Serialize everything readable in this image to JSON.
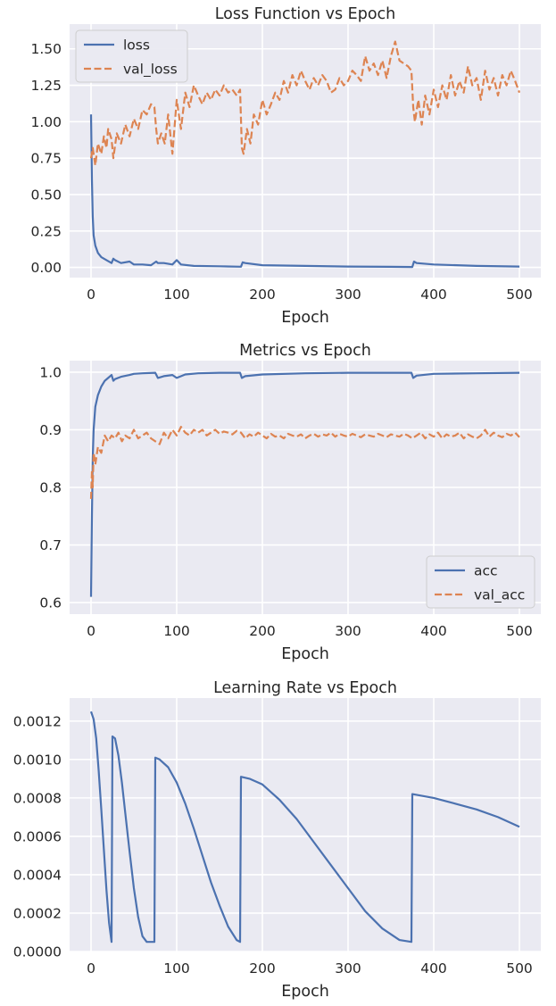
{
  "chart_data": [
    {
      "type": "line",
      "title": "Loss Function vs Epoch",
      "xlabel": "Epoch",
      "ylabel": "",
      "xlim": [
        -25,
        525
      ],
      "ylim": [
        -0.07,
        1.67
      ],
      "xticks": [
        0,
        100,
        200,
        300,
        400,
        500
      ],
      "xtick_labels": [
        "0",
        "100",
        "200",
        "300",
        "400",
        "500"
      ],
      "yticks": [
        0.0,
        0.25,
        0.5,
        0.75,
        1.0,
        1.25,
        1.5
      ],
      "ytick_labels": [
        "0.00",
        "0.25",
        "0.50",
        "0.75",
        "1.00",
        "1.25",
        "1.50"
      ],
      "legend": "top-left",
      "grid": true,
      "series": [
        {
          "name": "loss",
          "color": "#4c72b0",
          "dash": "solid",
          "x": [
            0,
            1,
            2,
            3,
            5,
            8,
            12,
            18,
            24,
            26,
            28,
            35,
            45,
            50,
            60,
            70,
            76,
            78,
            85,
            95,
            100,
            105,
            120,
            150,
            175,
            177,
            180,
            200,
            250,
            300,
            350,
            375,
            377,
            380,
            400,
            450,
            500
          ],
          "y": [
            1.05,
            0.6,
            0.35,
            0.22,
            0.15,
            0.1,
            0.07,
            0.05,
            0.03,
            0.06,
            0.05,
            0.03,
            0.04,
            0.02,
            0.02,
            0.015,
            0.04,
            0.03,
            0.03,
            0.02,
            0.05,
            0.02,
            0.01,
            0.008,
            0.005,
            0.035,
            0.03,
            0.015,
            0.01,
            0.006,
            0.004,
            0.003,
            0.04,
            0.03,
            0.02,
            0.01,
            0.006
          ]
        },
        {
          "name": "val_loss",
          "color": "#dd8452",
          "dash": "dashed",
          "x": [
            0,
            2,
            5,
            8,
            12,
            15,
            18,
            20,
            24,
            26,
            30,
            35,
            40,
            45,
            50,
            55,
            60,
            65,
            70,
            74,
            76,
            78,
            82,
            86,
            90,
            95,
            100,
            105,
            110,
            115,
            120,
            125,
            130,
            135,
            140,
            145,
            150,
            155,
            160,
            165,
            170,
            174,
            176,
            178,
            182,
            186,
            190,
            195,
            200,
            205,
            210,
            215,
            220,
            225,
            230,
            235,
            240,
            245,
            250,
            255,
            260,
            265,
            270,
            275,
            280,
            285,
            290,
            295,
            300,
            305,
            310,
            315,
            320,
            325,
            330,
            335,
            340,
            345,
            350,
            355,
            360,
            365,
            370,
            374,
            376,
            378,
            382,
            386,
            390,
            395,
            400,
            405,
            410,
            415,
            420,
            425,
            430,
            435,
            440,
            445,
            450,
            455,
            460,
            465,
            470,
            475,
            480,
            485,
            490,
            495,
            500
          ],
          "y": [
            0.75,
            0.82,
            0.7,
            0.85,
            0.78,
            0.9,
            0.82,
            0.95,
            0.88,
            0.75,
            0.92,
            0.85,
            0.98,
            0.9,
            1.02,
            0.95,
            1.08,
            1.05,
            1.12,
            1.1,
            0.95,
            0.85,
            0.92,
            0.85,
            1.05,
            0.78,
            1.15,
            0.95,
            1.2,
            1.1,
            1.25,
            1.18,
            1.12,
            1.2,
            1.15,
            1.22,
            1.18,
            1.25,
            1.2,
            1.22,
            1.18,
            1.22,
            0.82,
            0.78,
            0.95,
            0.85,
            1.05,
            0.98,
            1.15,
            1.05,
            1.12,
            1.2,
            1.15,
            1.28,
            1.2,
            1.32,
            1.25,
            1.35,
            1.28,
            1.22,
            1.3,
            1.25,
            1.32,
            1.28,
            1.2,
            1.22,
            1.3,
            1.25,
            1.28,
            1.35,
            1.32,
            1.28,
            1.45,
            1.35,
            1.4,
            1.32,
            1.42,
            1.3,
            1.45,
            1.55,
            1.42,
            1.4,
            1.38,
            1.35,
            1.1,
            1.0,
            1.15,
            0.98,
            1.18,
            1.05,
            1.22,
            1.1,
            1.25,
            1.15,
            1.32,
            1.18,
            1.28,
            1.2,
            1.38,
            1.25,
            1.3,
            1.15,
            1.35,
            1.22,
            1.3,
            1.18,
            1.32,
            1.25,
            1.35,
            1.28,
            1.2
          ]
        }
      ]
    },
    {
      "type": "line",
      "title": "Metrics vs Epoch",
      "xlabel": "Epoch",
      "ylabel": "",
      "xlim": [
        -25,
        525
      ],
      "ylim": [
        0.58,
        1.02
      ],
      "xticks": [
        0,
        100,
        200,
        300,
        400,
        500
      ],
      "xtick_labels": [
        "0",
        "100",
        "200",
        "300",
        "400",
        "500"
      ],
      "yticks": [
        0.6,
        0.7,
        0.8,
        0.9,
        1.0
      ],
      "ytick_labels": [
        "0.6",
        "0.7",
        "0.8",
        "0.9",
        "1.0"
      ],
      "legend": "bottom-right",
      "grid": true,
      "series": [
        {
          "name": "acc",
          "color": "#4c72b0",
          "dash": "solid",
          "x": [
            0,
            1,
            2,
            3,
            5,
            8,
            12,
            16,
            20,
            24,
            26,
            28,
            35,
            45,
            50,
            60,
            75,
            78,
            85,
            95,
            100,
            110,
            125,
            150,
            174,
            176,
            180,
            200,
            250,
            300,
            350,
            374,
            376,
            380,
            400,
            450,
            500
          ],
          "y": [
            0.61,
            0.75,
            0.85,
            0.9,
            0.94,
            0.96,
            0.975,
            0.985,
            0.99,
            0.995,
            0.985,
            0.988,
            0.992,
            0.995,
            0.997,
            0.998,
            0.999,
            0.99,
            0.993,
            0.995,
            0.99,
            0.996,
            0.998,
            0.999,
            0.999,
            0.99,
            0.993,
            0.996,
            0.998,
            0.999,
            0.999,
            0.999,
            0.99,
            0.994,
            0.997,
            0.998,
            0.999
          ]
        },
        {
          "name": "val_acc",
          "color": "#dd8452",
          "dash": "dashed",
          "x": [
            0,
            1,
            2,
            3,
            5,
            8,
            12,
            16,
            20,
            24,
            28,
            32,
            36,
            40,
            45,
            50,
            55,
            60,
            65,
            70,
            75,
            80,
            85,
            90,
            95,
            100,
            105,
            110,
            115,
            120,
            125,
            130,
            135,
            140,
            145,
            150,
            155,
            160,
            165,
            170,
            175,
            180,
            185,
            190,
            195,
            200,
            205,
            210,
            215,
            220,
            225,
            230,
            235,
            240,
            245,
            250,
            255,
            260,
            265,
            270,
            275,
            280,
            285,
            290,
            295,
            300,
            305,
            310,
            315,
            320,
            325,
            330,
            335,
            340,
            345,
            350,
            355,
            360,
            365,
            370,
            375,
            380,
            385,
            390,
            395,
            400,
            405,
            410,
            415,
            420,
            425,
            430,
            435,
            440,
            445,
            450,
            455,
            460,
            465,
            470,
            475,
            480,
            485,
            490,
            495,
            500
          ],
          "y": [
            0.78,
            0.83,
            0.8,
            0.86,
            0.84,
            0.87,
            0.86,
            0.89,
            0.88,
            0.89,
            0.885,
            0.895,
            0.88,
            0.89,
            0.885,
            0.9,
            0.885,
            0.89,
            0.895,
            0.885,
            0.88,
            0.875,
            0.895,
            0.885,
            0.9,
            0.89,
            0.905,
            0.895,
            0.89,
            0.9,
            0.895,
            0.9,
            0.89,
            0.895,
            0.9,
            0.893,
            0.897,
            0.895,
            0.892,
            0.898,
            0.895,
            0.885,
            0.892,
            0.888,
            0.895,
            0.89,
            0.885,
            0.893,
            0.888,
            0.89,
            0.885,
            0.893,
            0.89,
            0.888,
            0.892,
            0.885,
            0.89,
            0.893,
            0.888,
            0.892,
            0.89,
            0.895,
            0.888,
            0.893,
            0.89,
            0.888,
            0.893,
            0.89,
            0.887,
            0.892,
            0.89,
            0.888,
            0.893,
            0.89,
            0.887,
            0.892,
            0.89,
            0.888,
            0.893,
            0.89,
            0.885,
            0.89,
            0.895,
            0.885,
            0.892,
            0.888,
            0.895,
            0.885,
            0.892,
            0.888,
            0.89,
            0.895,
            0.885,
            0.892,
            0.888,
            0.885,
            0.89,
            0.9,
            0.888,
            0.895,
            0.89,
            0.887,
            0.893,
            0.89,
            0.895,
            0.887
          ]
        }
      ]
    },
    {
      "type": "line",
      "title": "Learning Rate vs Epoch",
      "xlabel": "Epoch",
      "ylabel": "",
      "xlim": [
        -25,
        525
      ],
      "ylim": [
        0.0,
        0.00132
      ],
      "xticks": [
        0,
        100,
        200,
        300,
        400,
        500
      ],
      "xtick_labels": [
        "0",
        "100",
        "200",
        "300",
        "400",
        "500"
      ],
      "yticks": [
        0.0,
        0.0002,
        0.0004,
        0.0006,
        0.0008,
        0.001,
        0.0012
      ],
      "ytick_labels": [
        "0.0000",
        "0.0002",
        "0.0004",
        "0.0006",
        "0.0008",
        "0.0010",
        "0.0012"
      ],
      "legend": "none",
      "grid": true,
      "series": [
        {
          "color": "#4c72b0",
          "dash": "solid",
          "x": [
            0,
            3,
            6,
            9,
            12,
            15,
            18,
            21,
            24,
            25,
            28,
            32,
            36,
            40,
            45,
            50,
            55,
            60,
            65,
            70,
            74,
            75,
            80,
            90,
            100,
            110,
            120,
            130,
            140,
            150,
            160,
            170,
            174,
            175,
            185,
            200,
            220,
            240,
            260,
            280,
            300,
            320,
            340,
            360,
            374,
            375,
            400,
            425,
            450,
            475,
            500
          ],
          "y": [
            0.00125,
            0.00121,
            0.00111,
            0.00094,
            0.00074,
            0.00053,
            0.00032,
            0.00015,
            5e-05,
            0.00112,
            0.00111,
            0.00102,
            0.00088,
            0.00072,
            0.00052,
            0.00033,
            0.00018,
            8e-05,
            5e-05,
            5e-05,
            5e-05,
            0.00101,
            0.001,
            0.00096,
            0.00088,
            0.00077,
            0.00064,
            0.0005,
            0.00036,
            0.00024,
            0.00013,
            6e-05,
            5e-05,
            0.00091,
            0.0009,
            0.00087,
            0.00079,
            0.00069,
            0.00057,
            0.00045,
            0.00033,
            0.00021,
            0.00012,
            6e-05,
            5e-05,
            0.00082,
            0.0008,
            0.00077,
            0.00074,
            0.0007,
            0.00065
          ]
        }
      ]
    }
  ]
}
